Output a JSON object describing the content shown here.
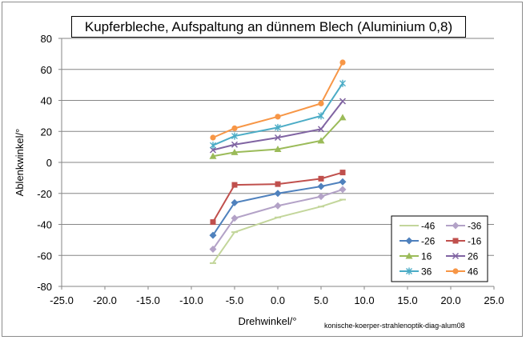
{
  "chart_data": {
    "type": "line",
    "title": "Kupferbleche, Aufspaltung an dünnem Blech (Aluminium 0,8)",
    "xlabel": "Drehwinkel/°",
    "ylabel": "Ablenkwinkel/°",
    "xlim": [
      -25,
      25
    ],
    "ylim": [
      -80,
      80
    ],
    "xticks": [
      "-25.0",
      "-20.0",
      "-15.0",
      "-10.0",
      "-5.0",
      "0.0",
      "5.0",
      "10.0",
      "15.0",
      "20.0",
      "25.0"
    ],
    "yticks": [
      "80",
      "60",
      "40",
      "20",
      "0",
      "-20",
      "-40",
      "-60",
      "-80"
    ],
    "legend_position": "bottom-right",
    "x": [
      -7.5,
      -5,
      0,
      5,
      7.5
    ],
    "series": [
      {
        "name": "-46",
        "color": "#c3d69b",
        "marker": "dash",
        "values": [
          -65,
          -45,
          -35.5,
          -28.5,
          -24
        ]
      },
      {
        "name": "-36",
        "color": "#b3a2c7",
        "marker": "diamond",
        "values": [
          -56,
          -36,
          -28,
          -22,
          -17.5
        ]
      },
      {
        "name": "-26",
        "color": "#4f81bd",
        "marker": "diamond",
        "values": [
          -47,
          -26,
          -20,
          -15.5,
          -12.5
        ]
      },
      {
        "name": "-16",
        "color": "#c0504d",
        "marker": "square",
        "values": [
          -38.5,
          -14.5,
          -14,
          -10.5,
          -6.5
        ]
      },
      {
        "name": "16",
        "color": "#9bbb59",
        "marker": "triangle",
        "values": [
          4,
          6.5,
          8.5,
          14,
          29
        ]
      },
      {
        "name": "26",
        "color": "#8064a2",
        "marker": "x",
        "values": [
          8,
          11.5,
          16,
          21.5,
          39.5
        ]
      },
      {
        "name": "36",
        "color": "#4bacc6",
        "marker": "star",
        "values": [
          11,
          17,
          22.5,
          30,
          51
        ]
      },
      {
        "name": "46",
        "color": "#f79646",
        "marker": "circle",
        "values": [
          16,
          22,
          29.5,
          38,
          64.5
        ]
      }
    ]
  },
  "caption": "konische-koerper-strahlenoptik-diag-alum08"
}
